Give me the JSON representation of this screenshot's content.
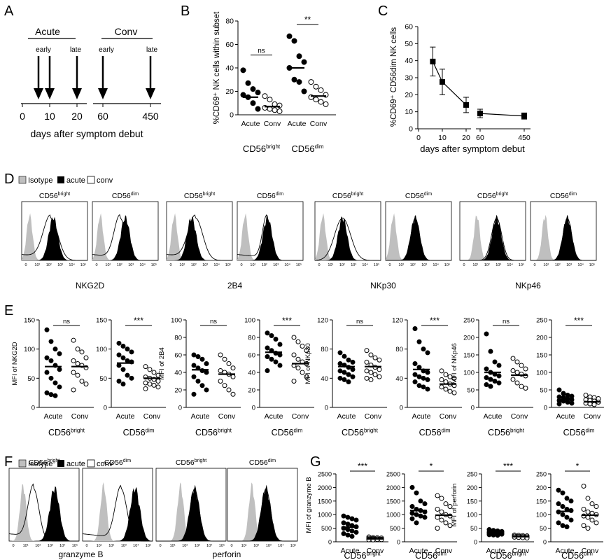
{
  "colors": {
    "ink": "#000000",
    "isotype": "#bfbfbf",
    "acute": "#000000",
    "conv": "#ffffff"
  },
  "panel_letters": [
    "A",
    "B",
    "C",
    "D",
    "E",
    "F",
    "G"
  ],
  "subsets": {
    "bright": "CD56",
    "bright_sup": "bright",
    "dim": "CD56",
    "dim_sup": "dim"
  },
  "groups": {
    "acute": "Acute",
    "conv": "Conv"
  },
  "legend": {
    "isotype": "Isotype",
    "acute": "acute",
    "conv": "conv"
  },
  "hist_ticks": [
    "0",
    "10¹",
    "10²",
    "10³",
    "10⁴",
    "10⁵"
  ],
  "panel_a": {
    "acute_label": "Acute",
    "conv_label": "Conv",
    "early_label": "early",
    "late_label": "late",
    "ticks": [
      "0",
      "10",
      "20",
      "60",
      "450"
    ],
    "xlabel": "days after symptom debut",
    "arrow_days": [
      6,
      10,
      20,
      60,
      450
    ]
  },
  "chart_data": [
    {
      "panel": "B",
      "type": "scatter",
      "ylabel": "%CD69⁺ NK cells within subset",
      "ylim": [
        0,
        80
      ],
      "yticks": [
        0,
        20,
        40,
        60,
        80
      ],
      "groups": [
        {
          "subset": "bright",
          "status": "acute",
          "values": [
            38,
            27,
            22,
            19,
            17,
            15,
            10,
            5
          ],
          "median": 15
        },
        {
          "subset": "bright",
          "status": "conv",
          "values": [
            16,
            13,
            9,
            8,
            6,
            5,
            4,
            3
          ],
          "median": 7
        },
        {
          "subset": "dim",
          "status": "acute",
          "values": [
            67,
            63,
            50,
            45,
            40,
            30,
            28,
            20
          ],
          "median": 40
        },
        {
          "subset": "dim",
          "status": "conv",
          "values": [
            28,
            24,
            21,
            17,
            15,
            13,
            11,
            9
          ],
          "median": 16
        }
      ],
      "significance": [
        {
          "pair": [
            0,
            1
          ],
          "label": "ns"
        },
        {
          "pair": [
            2,
            3
          ],
          "label": "**"
        }
      ]
    },
    {
      "panel": "C",
      "type": "line",
      "ylabel": "%CD69⁺ CD56dim NK cells",
      "xlabel": "days after symptom debut",
      "xticks": [
        "0",
        "10",
        "20",
        "60",
        "450"
      ],
      "ylim": [
        0,
        60
      ],
      "yticks": [
        0,
        10,
        20,
        30,
        40,
        50,
        60
      ],
      "x": [
        6,
        10,
        20,
        60,
        450
      ],
      "y": [
        39.5,
        27.5,
        14,
        9,
        7.5
      ],
      "err": [
        8.5,
        7.5,
        4.5,
        2.5,
        1.8
      ]
    },
    {
      "panel": "E",
      "type": "scatter",
      "marker": "NKG2D",
      "ylabel": "MFI of NKG2D",
      "subplots": [
        {
          "subset": "bright",
          "ylim": [
            0,
            150
          ],
          "yticks": [
            0,
            50,
            100,
            150
          ],
          "sig": "ns",
          "acute": [
            133,
            113,
            100,
            92,
            85,
            80,
            72,
            65,
            60,
            50,
            42,
            35,
            25,
            22,
            20
          ],
          "acute_median": 70,
          "conv": [
            115,
            100,
            95,
            85,
            80,
            75,
            72,
            68,
            60,
            55,
            45,
            40,
            30
          ],
          "conv_median": 70
        },
        {
          "subset": "dim",
          "ylim": [
            0,
            150
          ],
          "yticks": [
            0,
            50,
            100,
            150
          ],
          "sig": "***",
          "acute": [
            110,
            105,
            100,
            95,
            90,
            85,
            80,
            78,
            72,
            65,
            55,
            50,
            45,
            40
          ],
          "acute_median": 76,
          "conv": [
            70,
            65,
            60,
            55,
            52,
            50,
            48,
            45,
            42,
            40,
            38,
            35,
            32
          ],
          "conv_median": 50
        }
      ]
    },
    {
      "panel": "E",
      "type": "scatter",
      "marker": "2B4",
      "ylabel": "MFI of 2B4",
      "subplots": [
        {
          "subset": "bright",
          "ylim": [
            0,
            100
          ],
          "yticks": [
            0,
            20,
            40,
            60,
            80,
            100
          ],
          "sig": "ns",
          "acute": [
            60,
            58,
            55,
            50,
            48,
            45,
            42,
            40,
            35,
            30,
            25,
            20,
            15
          ],
          "acute_median": 43,
          "conv": [
            60,
            55,
            50,
            45,
            42,
            40,
            38,
            35,
            30,
            25,
            20,
            15
          ],
          "conv_median": 38
        },
        {
          "subset": "dim",
          "ylim": [
            0,
            100
          ],
          "yticks": [
            0,
            20,
            40,
            60,
            80,
            100
          ],
          "sig": "***",
          "acute": [
            85,
            82,
            78,
            72,
            68,
            65,
            62,
            60,
            58,
            55,
            52,
            48,
            42
          ],
          "acute_median": 63,
          "conv": [
            80,
            75,
            70,
            65,
            60,
            55,
            52,
            50,
            48,
            45,
            40,
            35,
            30
          ],
          "conv_median": 50
        }
      ]
    },
    {
      "panel": "E",
      "type": "scatter",
      "marker": "NKp30",
      "ylabel": "MFI of NKp30",
      "subplots": [
        {
          "subset": "bright",
          "ylim": [
            0,
            120
          ],
          "yticks": [
            0,
            40,
            80,
            120
          ],
          "sig": "ns",
          "acute": [
            75,
            70,
            65,
            62,
            60,
            58,
            55,
            52,
            50,
            48,
            45,
            42,
            40,
            38,
            35
          ],
          "acute_median": 56,
          "conv": [
            78,
            72,
            68,
            65,
            62,
            58,
            55,
            52,
            50,
            48,
            45,
            42,
            40,
            38
          ],
          "conv_median": 56
        },
        {
          "subset": "dim",
          "ylim": [
            0,
            120
          ],
          "yticks": [
            0,
            40,
            80,
            120
          ],
          "sig": "***",
          "acute": [
            108,
            90,
            80,
            75,
            60,
            55,
            50,
            48,
            45,
            42,
            40,
            38,
            35,
            30,
            28,
            25
          ],
          "acute_median": 52,
          "conv": [
            50,
            45,
            42,
            40,
            38,
            35,
            32,
            30,
            28,
            25,
            22,
            20
          ],
          "conv_median": 32
        }
      ]
    },
    {
      "panel": "E",
      "type": "scatter",
      "marker": "NKp46",
      "ylabel": "MFI of NKp46",
      "subplots": [
        {
          "subset": "bright",
          "ylim": [
            0,
            250
          ],
          "yticks": [
            0,
            50,
            100,
            150,
            200,
            250
          ],
          "sig": "ns",
          "acute": [
            210,
            160,
            130,
            120,
            110,
            100,
            95,
            90,
            85,
            80,
            75,
            70,
            65,
            60
          ],
          "acute_median": 100,
          "conv": [
            140,
            130,
            120,
            110,
            105,
            100,
            95,
            90,
            80,
            70,
            60,
            55
          ],
          "conv_median": 92
        },
        {
          "subset": "dim",
          "ylim": [
            0,
            250
          ],
          "yticks": [
            0,
            50,
            100,
            150,
            200,
            250
          ],
          "sig": "***",
          "acute": [
            50,
            40,
            35,
            32,
            30,
            28,
            25,
            22,
            20,
            18,
            15,
            12,
            10
          ],
          "acute_median": 22,
          "conv": [
            35,
            30,
            28,
            25,
            22,
            20,
            18,
            15,
            12,
            10,
            8
          ],
          "conv_median": 16
        }
      ]
    },
    {
      "panel": "G",
      "type": "scatter",
      "marker": "granzyme B",
      "ylabel": "MFI of granzyme B",
      "subplots": [
        {
          "subset": "bright",
          "ylim": [
            0,
            2500
          ],
          "yticks": [
            0,
            500,
            1000,
            1500,
            2000,
            2500
          ],
          "sig": "***",
          "acute": [
            950,
            900,
            850,
            800,
            700,
            650,
            600,
            550,
            500,
            450,
            400,
            350,
            300,
            250,
            200
          ],
          "acute_median": 540,
          "conv": [
            180,
            160,
            150,
            140,
            130,
            120,
            110,
            100,
            95,
            90,
            85,
            80,
            75,
            70
          ],
          "conv_median": 110
        },
        {
          "subset": "dim",
          "ylim": [
            0,
            2500
          ],
          "yticks": [
            0,
            500,
            1000,
            1500,
            2000,
            2500
          ],
          "sig": "*",
          "acute": [
            2000,
            1800,
            1500,
            1400,
            1300,
            1200,
            1150,
            1100,
            1050,
            1000,
            950,
            900,
            850,
            700
          ],
          "acute_median": 1150,
          "conv": [
            1700,
            1600,
            1400,
            1300,
            1200,
            1100,
            1000,
            950,
            900,
            800,
            700,
            600,
            500
          ],
          "conv_median": 980
        }
      ]
    },
    {
      "panel": "G",
      "type": "scatter",
      "marker": "perforin",
      "ylabel": "MFI of perforin",
      "subplots": [
        {
          "subset": "bright",
          "ylim": [
            0,
            250
          ],
          "yticks": [
            0,
            50,
            100,
            150,
            200,
            250
          ],
          "sig": "***",
          "acute": [
            45,
            42,
            40,
            38,
            36,
            35,
            34,
            33,
            32,
            31,
            30,
            28,
            26,
            25,
            24
          ],
          "acute_median": 32,
          "conv": [
            25,
            24,
            23,
            22,
            21,
            20,
            19,
            18,
            17,
            16,
            15,
            14
          ],
          "conv_median": 19
        },
        {
          "subset": "dim",
          "ylim": [
            0,
            250
          ],
          "yticks": [
            0,
            50,
            100,
            150,
            200,
            250
          ],
          "sig": "*",
          "acute": [
            190,
            180,
            160,
            150,
            140,
            130,
            120,
            115,
            110,
            100,
            90,
            80,
            70,
            60,
            55
          ],
          "acute_median": 112,
          "conv": [
            205,
            160,
            140,
            130,
            120,
            110,
            105,
            100,
            95,
            90,
            80,
            70,
            60,
            50
          ],
          "conv_median": 98
        }
      ]
    }
  ],
  "hist_d": [
    {
      "marker": "NKG2D",
      "bright": {
        "iso": 0.12,
        "acute": 0.48,
        "conv": 0.44,
        "conv_spread": 0.2
      },
      "dim": {
        "iso": 0.12,
        "acute": 0.5,
        "conv": 0.42,
        "conv_spread": 0.16
      }
    },
    {
      "marker": "2B4",
      "bright": {
        "iso": 0.12,
        "acute": 0.38,
        "conv": 0.44,
        "conv_spread": 0.2
      },
      "dim": {
        "iso": 0.12,
        "acute": 0.46,
        "conv": 0.45,
        "conv_spread": 0.12
      }
    },
    {
      "marker": "NKp30",
      "bright": {
        "iso": 0.12,
        "acute": 0.42,
        "conv": 0.42,
        "conv_spread": 0.22
      },
      "dim": {
        "iso": 0.12,
        "acute": 0.45,
        "conv": 0.45,
        "conv_spread": 0.12
      }
    },
    {
      "marker": "NKp46",
      "bright": {
        "iso": 0.26,
        "acute": 0.56,
        "conv": 0.56,
        "conv_spread": 0.14
      },
      "dim": {
        "iso": 0.22,
        "acute": 0.56,
        "conv": 0.56,
        "conv_spread": 0.12
      }
    }
  ],
  "hist_f": [
    {
      "marker": "granzyme B",
      "bright": {
        "iso": 0.2,
        "acute": 0.65,
        "conv": 0.35,
        "conv_spread": 0.14
      },
      "dim": {
        "iso": 0.3,
        "acute": 0.75,
        "conv": 0.55,
        "conv_spread": 0.15
      }
    },
    {
      "marker": "perforin",
      "bright": {
        "iso": 0.35,
        "acute": 0.55,
        "conv": 0.55,
        "conv_spread": 0.12
      },
      "dim": {
        "iso": 0.35,
        "acute": 0.55,
        "conv": 0.55,
        "conv_spread": 0.12
      }
    }
  ]
}
